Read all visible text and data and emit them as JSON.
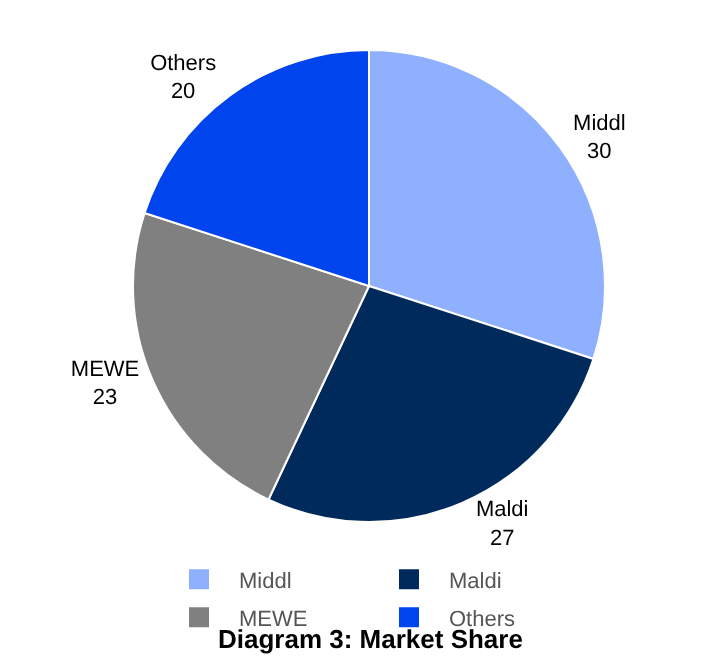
{
  "chart_data": {
    "type": "pie",
    "title": "Diagram 3: Market Share",
    "categories": [
      "Middl",
      "Maldi",
      "MEWE",
      "Others"
    ],
    "values": [
      30,
      27,
      23,
      20
    ],
    "colors": [
      "#8fb0ff",
      "#002a5c",
      "#808080",
      "#0044ee"
    ],
    "data_labels": true,
    "legend": "bottom"
  }
}
